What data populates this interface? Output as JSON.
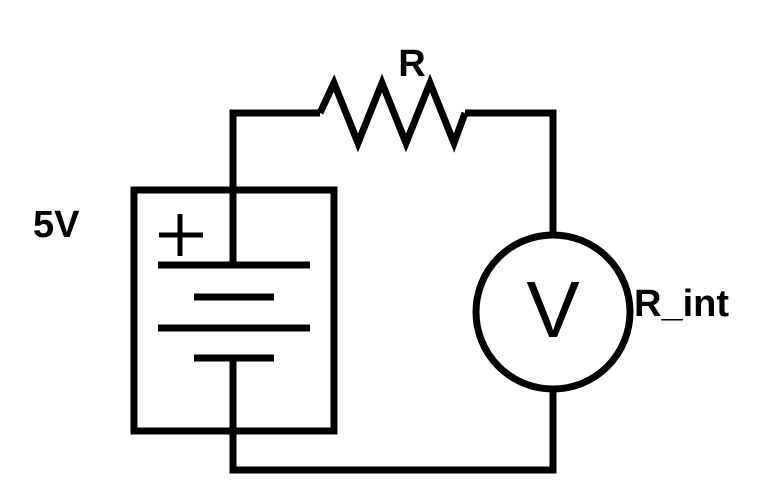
{
  "labels": {
    "battery_voltage": "5V",
    "resistor": "R",
    "internal_resistance": "R_int",
    "meter_symbol": "V",
    "positive_terminal": "+"
  },
  "colors": {
    "stroke": "#000000",
    "background": "#ffffff"
  }
}
